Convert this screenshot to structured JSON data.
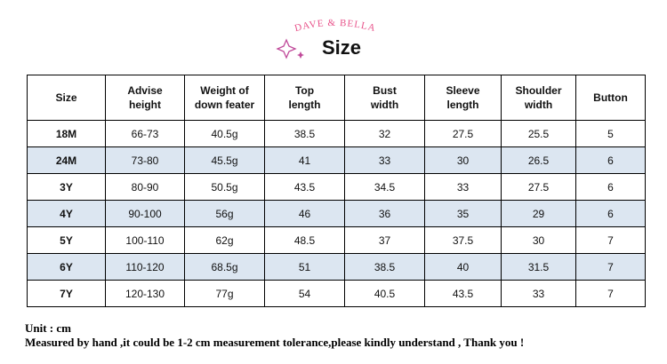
{
  "header": {
    "brand": "DAVE & BELLA",
    "title": "Size"
  },
  "table": {
    "columns": [
      [
        "Size"
      ],
      [
        "Advise",
        "height"
      ],
      [
        "Weight of",
        "down feater"
      ],
      [
        "Top",
        "length"
      ],
      [
        "Bust",
        "width"
      ],
      [
        "Sleeve",
        "length"
      ],
      [
        "Shoulder",
        "width"
      ],
      [
        "Button"
      ]
    ],
    "rows": [
      [
        "18M",
        "66-73",
        "40.5g",
        "38.5",
        "32",
        "27.5",
        "25.5",
        "5"
      ],
      [
        "24M",
        "73-80",
        "45.5g",
        "41",
        "33",
        "30",
        "26.5",
        "6"
      ],
      [
        "3Y",
        "80-90",
        "50.5g",
        "43.5",
        "34.5",
        "33",
        "27.5",
        "6"
      ],
      [
        "4Y",
        "90-100",
        "56g",
        "46",
        "36",
        "35",
        "29",
        "6"
      ],
      [
        "5Y",
        "100-110",
        "62g",
        "48.5",
        "37",
        "37.5",
        "30",
        "7"
      ],
      [
        "6Y",
        "110-120",
        "68.5g",
        "51",
        "38.5",
        "40",
        "31.5",
        "7"
      ],
      [
        "7Y",
        "120-130",
        "77g",
        "54",
        "40.5",
        "43.5",
        "33",
        "7"
      ]
    ]
  },
  "footer": {
    "unit": "Unit : cm",
    "note": "Measured by hand ,it could be 1-2 cm measurement tolerance,please kindly understand , Thank you !"
  }
}
